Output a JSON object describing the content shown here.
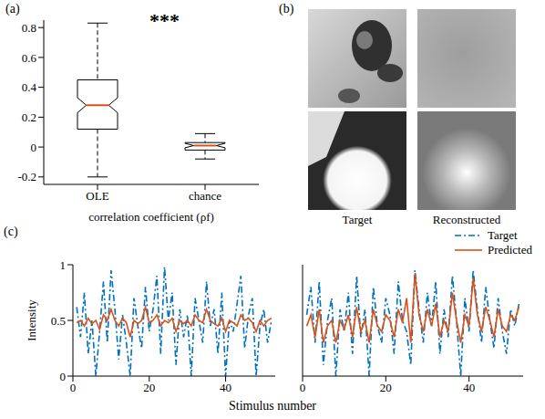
{
  "chart_data": [
    {
      "panel": "(a)",
      "type": "box",
      "categories": [
        "OLE",
        "chance"
      ],
      "boxes": [
        {
          "whisker_low": -0.2,
          "q1": 0.12,
          "notch_low": 0.23,
          "median": 0.28,
          "notch_high": 0.33,
          "q3": 0.45,
          "whisker_high": 0.83
        },
        {
          "whisker_low": -0.08,
          "q1": -0.02,
          "notch_low": -0.005,
          "median": 0.01,
          "notch_high": 0.025,
          "q3": 0.03,
          "whisker_high": 0.09
        }
      ],
      "xlabel": "correlation coefficient (ρf)",
      "annotation": "***",
      "ylim": [
        -0.25,
        0.85
      ],
      "yticks": [
        -0.2,
        0,
        0.2,
        0.4,
        0.6,
        0.8
      ],
      "color": "#000000"
    },
    {
      "panel": "(c)",
      "type": "line",
      "xlabel": "Stimulus number",
      "ylabel": "Intensity",
      "xlim": [
        0,
        53
      ],
      "xticks": [
        0,
        20,
        40
      ],
      "ylim": [
        0,
        1
      ],
      "yticks": [
        0,
        0.5,
        1
      ],
      "legend": "upper right",
      "x": [
        1,
        2,
        3,
        4,
        5,
        6,
        7,
        8,
        9,
        10,
        11,
        12,
        13,
        14,
        15,
        16,
        17,
        18,
        19,
        20,
        21,
        22,
        23,
        24,
        25,
        26,
        27,
        28,
        29,
        30,
        31,
        32,
        33,
        34,
        35,
        36,
        37,
        38,
        39,
        40,
        41,
        42,
        43,
        44,
        45,
        46,
        47,
        48,
        49,
        50,
        51,
        52
      ],
      "subplots": [
        {
          "series": [
            {
              "name": "Target",
              "color": "#0072bd",
              "line_style": "dashdot",
              "values": [
                0.62,
                0.35,
                0.75,
                0.2,
                0.5,
                0.0,
                0.4,
                0.85,
                0.3,
                0.95,
                0.6,
                0.15,
                0.55,
                0.3,
                0.0,
                0.7,
                0.45,
                0.25,
                0.8,
                0.4,
                0.6,
                0.9,
                0.2,
                0.98,
                0.5,
                0.75,
                0.1,
                0.6,
                0.35,
                0.55,
                0.0,
                0.7,
                0.5,
                0.3,
                0.85,
                0.45,
                0.6,
                0.2,
                0.75,
                0.0,
                0.5,
                0.4,
                0.65,
                0.9,
                0.25,
                0.55,
                0.7,
                0.0,
                0.45,
                0.6,
                0.3,
                0.5
              ]
            },
            {
              "name": "Predicted",
              "color": "#d95319",
              "line_style": "solid",
              "values": [
                0.48,
                0.5,
                0.45,
                0.52,
                0.47,
                0.5,
                0.42,
                0.55,
                0.5,
                0.6,
                0.5,
                0.45,
                0.52,
                0.48,
                0.35,
                0.5,
                0.47,
                0.5,
                0.62,
                0.48,
                0.5,
                0.55,
                0.45,
                0.5,
                0.48,
                0.52,
                0.4,
                0.5,
                0.47,
                0.5,
                0.45,
                0.55,
                0.5,
                0.48,
                0.6,
                0.5,
                0.47,
                0.45,
                0.52,
                0.4,
                0.5,
                0.48,
                0.45,
                0.55,
                0.5,
                0.52,
                0.48,
                0.4,
                0.5,
                0.45,
                0.5,
                0.52
              ]
            }
          ]
        },
        {
          "tick_labels": "x",
          "series": [
            {
              "name": "Target",
              "color": "#0072bd",
              "line_style": "dashdot",
              "values": [
                0.55,
                0.8,
                0.3,
                0.85,
                0.1,
                0.5,
                0.7,
                0.0,
                0.6,
                0.4,
                0.75,
                0.2,
                0.9,
                0.35,
                0.6,
                0.0,
                0.8,
                0.45,
                0.3,
                0.7,
                0.55,
                0.2,
                0.85,
                0.5,
                0.4,
                0.1,
                0.95,
                0.6,
                0.3,
                0.75,
                0.45,
                0.85,
                0.2,
                0.6,
                0.35,
                0.9,
                0.5,
                0.0,
                0.7,
                0.4,
                0.95,
                0.6,
                0.3,
                0.8,
                0.5,
                0.25,
                0.7,
                0.4,
                0.2,
                0.6,
                0.45,
                0.65
              ]
            },
            {
              "name": "Predicted",
              "color": "#d95319",
              "line_style": "solid",
              "values": [
                0.45,
                0.55,
                0.35,
                0.6,
                0.3,
                0.45,
                0.5,
                0.3,
                0.5,
                0.42,
                0.55,
                0.35,
                0.62,
                0.4,
                0.5,
                0.3,
                0.6,
                0.45,
                0.4,
                0.55,
                0.5,
                0.35,
                0.6,
                0.48,
                0.7,
                0.3,
                0.92,
                0.55,
                0.4,
                0.6,
                0.45,
                0.65,
                0.35,
                0.5,
                0.4,
                0.75,
                0.5,
                0.3,
                0.55,
                0.45,
                0.88,
                0.55,
                0.4,
                0.62,
                0.5,
                0.35,
                0.6,
                0.45,
                0.4,
                0.55,
                0.5,
                0.62
              ]
            }
          ]
        }
      ]
    }
  ],
  "images": {
    "panel": "(b)",
    "labels": [
      "Target",
      "Reconstructed"
    ]
  }
}
